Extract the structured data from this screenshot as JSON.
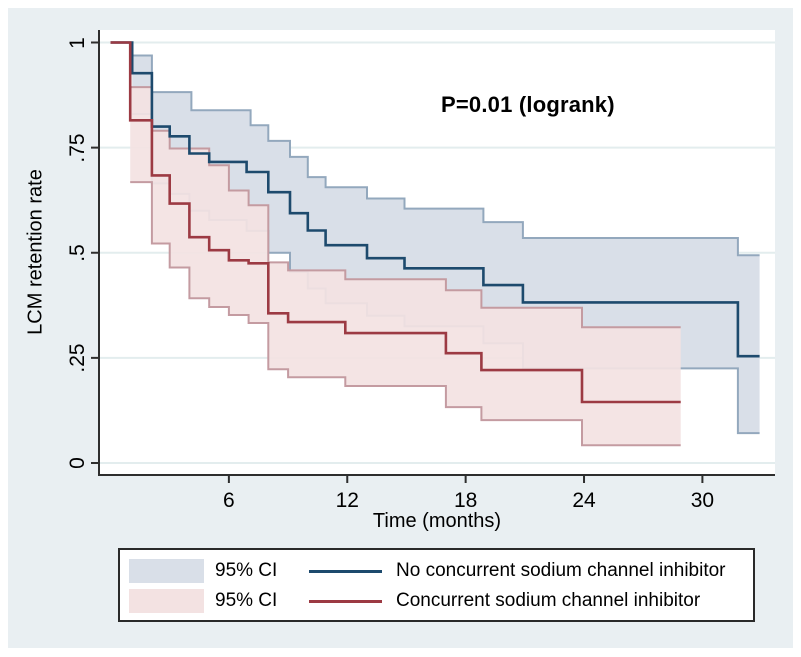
{
  "chart_data": {
    "type": "line",
    "subtype": "kaplan_meier_step_with_ci_bands",
    "title": "",
    "annotation": "P=0.01 (logrank)",
    "xlabel": "Time (months)",
    "ylabel": "LCM retention rate",
    "xlim": [
      0,
      33.7
    ],
    "ylim": [
      0,
      1
    ],
    "grid": true,
    "x_ticks": [
      {
        "v": 6,
        "label": "6"
      },
      {
        "v": 12,
        "label": "12"
      },
      {
        "v": 18,
        "label": "18"
      },
      {
        "v": 24,
        "label": "24"
      },
      {
        "v": 30,
        "label": "30"
      }
    ],
    "y_ticks": [
      {
        "v": 0,
        "label": "0"
      },
      {
        "v": 0.25,
        "label": ".25"
      },
      {
        "v": 0.5,
        "label": ".5"
      },
      {
        "v": 0.75,
        "label": ".75"
      },
      {
        "v": 1,
        "label": "1"
      }
    ],
    "series": [
      {
        "name": "No concurrent sodium channel inhibitor",
        "color": "#1d4a6d",
        "ci_fill": "#d9dfe8",
        "ci_edge": "#93a8bd",
        "t_end": 32.9,
        "steps": [
          [
            0,
            1
          ],
          [
            1.1,
            0.927
          ],
          [
            2.1,
            0.8
          ],
          [
            3.0,
            0.777
          ],
          [
            4.0,
            0.736
          ],
          [
            5.0,
            0.716
          ],
          [
            6.9,
            0.692
          ],
          [
            8.0,
            0.644
          ],
          [
            9.1,
            0.594
          ],
          [
            10.0,
            0.553
          ],
          [
            10.9,
            0.518
          ],
          [
            13.0,
            0.487
          ],
          [
            14.9,
            0.463
          ],
          [
            18.9,
            0.423
          ],
          [
            20.9,
            0.382
          ],
          [
            31.8,
            0.254
          ]
        ],
        "ci_upper": [
          [
            1.1,
            0.969
          ],
          [
            2.1,
            0.882
          ],
          [
            4.1,
            0.839
          ],
          [
            7.1,
            0.803
          ],
          [
            8.0,
            0.766
          ],
          [
            9.1,
            0.728
          ],
          [
            10.0,
            0.68
          ],
          [
            10.9,
            0.656
          ],
          [
            13.0,
            0.629
          ],
          [
            14.9,
            0.605
          ],
          [
            18.9,
            0.573
          ],
          [
            20.9,
            0.535
          ],
          [
            31.8,
            0.494
          ]
        ],
        "ci_lower": [
          [
            1.1,
            0.83
          ],
          [
            2.1,
            0.665
          ],
          [
            3.0,
            0.64
          ],
          [
            4.0,
            0.6
          ],
          [
            5.0,
            0.578
          ],
          [
            6.9,
            0.552
          ],
          [
            8.0,
            0.5
          ],
          [
            9.1,
            0.455
          ],
          [
            10.0,
            0.415
          ],
          [
            10.9,
            0.38
          ],
          [
            13.0,
            0.35
          ],
          [
            14.9,
            0.325
          ],
          [
            18.9,
            0.285
          ],
          [
            20.9,
            0.225
          ],
          [
            31.8,
            0.071
          ]
        ]
      },
      {
        "name": "Concurrent sodium channel inhibitor",
        "color": "#9c3a43",
        "ci_fill": "#f3e2e2",
        "ci_edge": "#c49ba1",
        "t_end": 28.9,
        "steps": [
          [
            0,
            1
          ],
          [
            1.0,
            0.815
          ],
          [
            2.1,
            0.684
          ],
          [
            3.0,
            0.617
          ],
          [
            4.0,
            0.537
          ],
          [
            5.0,
            0.506
          ],
          [
            6.0,
            0.482
          ],
          [
            7.0,
            0.475
          ],
          [
            8.0,
            0.356
          ],
          [
            9.0,
            0.335
          ],
          [
            11.9,
            0.309
          ],
          [
            17.0,
            0.261
          ],
          [
            18.8,
            0.221
          ],
          [
            23.9,
            0.145
          ]
        ],
        "ci_upper": [
          [
            1.0,
            0.894
          ],
          [
            2.1,
            0.79
          ],
          [
            3.0,
            0.748
          ],
          [
            5.0,
            0.708
          ],
          [
            6.0,
            0.648
          ],
          [
            7.0,
            0.613
          ],
          [
            8.0,
            0.477
          ],
          [
            9.0,
            0.458
          ],
          [
            11.9,
            0.437
          ],
          [
            17.0,
            0.411
          ],
          [
            18.8,
            0.369
          ],
          [
            23.9,
            0.323
          ]
        ],
        "ci_lower": [
          [
            1.0,
            0.668
          ],
          [
            2.1,
            0.522
          ],
          [
            3.0,
            0.465
          ],
          [
            4.0,
            0.392
          ],
          [
            5.0,
            0.371
          ],
          [
            6.0,
            0.352
          ],
          [
            7.0,
            0.333
          ],
          [
            8.0,
            0.223
          ],
          [
            9.0,
            0.204
          ],
          [
            11.9,
            0.183
          ],
          [
            17.0,
            0.133
          ],
          [
            18.8,
            0.102
          ],
          [
            23.9,
            0.042
          ]
        ]
      }
    ],
    "legend": {
      "position": "bottom",
      "rows": [
        {
          "ci_label": "95% CI",
          "line_label": "No concurrent sodium channel inhibitor"
        },
        {
          "ci_label": "95% CI",
          "line_label": "Concurrent sodium channel inhibitor"
        }
      ]
    },
    "colors": {
      "figure_bg": "#e9eff2",
      "plot_bg": "#ffffff",
      "grid": "#e3edee",
      "axis": "#2e2e2e",
      "text": "#000000"
    }
  }
}
